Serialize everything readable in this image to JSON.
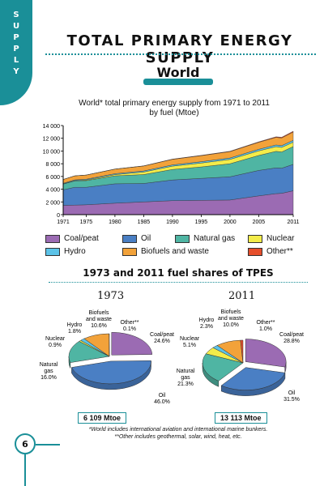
{
  "sidebar": {
    "tab_label": "SUPPLY"
  },
  "header": {
    "title": "TOTAL PRIMARY ENERGY SUPPLY",
    "section": "World"
  },
  "colors": {
    "accent": "#1a8f98",
    "coal_peat": "#9b6bb3",
    "oil": "#4a7fc4",
    "natural_gas": "#4fb5a3",
    "nuclear": "#f3ec4a",
    "hydro": "#5cc3e8",
    "biofuels_waste": "#f2a23a",
    "other": "#e54e2b"
  },
  "legend": {
    "coal_peat": "Coal/peat",
    "oil": "Oil",
    "natural_gas": "Natural gas",
    "nuclear": "Nuclear",
    "hydro": "Hydro",
    "biofuels_waste": "Biofuels and waste",
    "other": "Other**"
  },
  "pie_section": {
    "title": "1973 and 2011 fuel shares of TPES"
  },
  "chart_data": [
    {
      "type": "area",
      "title": "World* total primary energy supply from 1971 to 2011\nby fuel (Mtoe)",
      "title_lines": [
        "World* total primary energy supply from 1971 to 2011",
        "by fuel (Mtoe)"
      ],
      "ylim": [
        0,
        14000
      ],
      "yticks": [
        "0",
        "2 000",
        "4 000",
        "6 000",
        "8 000",
        "10 000",
        "12 000",
        "14 000"
      ],
      "xticks": [
        "1971",
        "1975",
        "1980",
        "1985",
        "1990",
        "1995",
        "2000",
        "2005",
        "2011"
      ],
      "x": [
        1971,
        1973,
        1975,
        1980,
        1985,
        1990,
        1995,
        2000,
        2005,
        2008,
        2009,
        2011
      ],
      "stacked": true,
      "series": [
        {
          "name": "Coal/peat",
          "values": [
            1450,
            1500,
            1550,
            1800,
            2000,
            2200,
            2250,
            2300,
            2950,
            3300,
            3350,
            3750
          ]
        },
        {
          "name": "Oil",
          "values": [
            2450,
            2800,
            2750,
            3050,
            2900,
            3250,
            3450,
            3650,
            4000,
            4050,
            3950,
            4150
          ]
        },
        {
          "name": "Natural gas",
          "values": [
            900,
            1000,
            1050,
            1250,
            1400,
            1650,
            1800,
            2050,
            2350,
            2600,
            2550,
            2800
          ]
        },
        {
          "name": "Nuclear",
          "values": [
            30,
            55,
            100,
            190,
            400,
            520,
            610,
            680,
            720,
            730,
            720,
            680
          ]
        },
        {
          "name": "Hydro",
          "values": [
            95,
            110,
            120,
            145,
            165,
            190,
            210,
            225,
            250,
            270,
            275,
            300
          ]
        },
        {
          "name": "Biofuels and waste",
          "values": [
            600,
            630,
            650,
            720,
            780,
            880,
            950,
            1000,
            1100,
            1190,
            1210,
            1300
          ]
        },
        {
          "name": "Other**",
          "values": [
            5,
            6,
            8,
            12,
            25,
            40,
            50,
            60,
            75,
            95,
            110,
            130
          ]
        }
      ]
    },
    {
      "type": "pie",
      "year": "1973",
      "total": "6 109 Mtoe",
      "slices": [
        {
          "name": "Coal/peat",
          "value": 24.6,
          "label": "Coal/peat",
          "pct": "24.6%"
        },
        {
          "name": "Oil",
          "value": 46.0,
          "label": "Oil",
          "pct": "46.0%"
        },
        {
          "name": "Natural gas",
          "value": 16.0,
          "label": "Natural gas",
          "pct": "16.0%"
        },
        {
          "name": "Nuclear",
          "value": 0.9,
          "label": "Nuclear",
          "pct": "0.9%"
        },
        {
          "name": "Hydro",
          "value": 1.8,
          "label": "Hydro",
          "pct": "1.8%"
        },
        {
          "name": "Biofuels and waste",
          "value": 10.6,
          "label": "Biofuels and waste",
          "pct": "10.6%"
        },
        {
          "name": "Other**",
          "value": 0.1,
          "label": "Other**",
          "pct": "0.1%"
        }
      ]
    },
    {
      "type": "pie",
      "year": "2011",
      "total": "13 113 Mtoe",
      "slices": [
        {
          "name": "Coal/peat",
          "value": 28.8,
          "label": "Coal/peat",
          "pct": "28.8%"
        },
        {
          "name": "Oil",
          "value": 31.5,
          "label": "Oil",
          "pct": "31.5%"
        },
        {
          "name": "Natural gas",
          "value": 21.3,
          "label": "Natural gas",
          "pct": "21.3%"
        },
        {
          "name": "Nuclear",
          "value": 5.1,
          "label": "Nuclear",
          "pct": "5.1%"
        },
        {
          "name": "Hydro",
          "value": 2.3,
          "label": "Hydro",
          "pct": "2.3%"
        },
        {
          "name": "Biofuels and waste",
          "value": 10.0,
          "label": "Biofuels and waste",
          "pct": "10.0%"
        },
        {
          "name": "Other**",
          "value": 1.0,
          "label": "Other**",
          "pct": "1.0%"
        }
      ]
    }
  ],
  "footnotes": {
    "note1": "*World includes international aviation and international marine bunkers.",
    "note2": "**Other includes geothermal, solar, wind, heat, etc."
  },
  "page": {
    "number": "6"
  }
}
